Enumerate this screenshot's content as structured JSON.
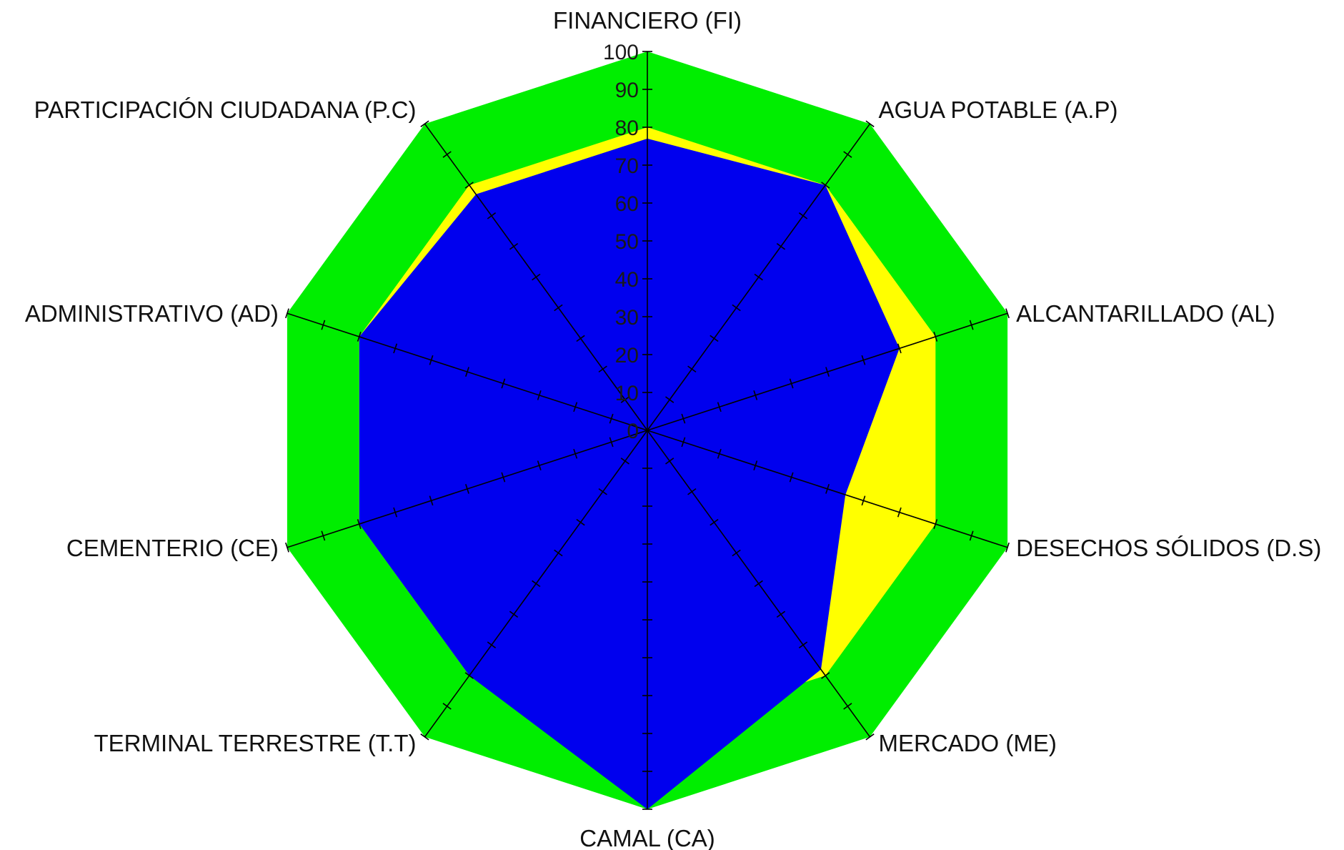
{
  "chart_data": {
    "type": "radar",
    "categories": [
      "FINANCIERO (FI)",
      "AGUA POTABLE (A.P)",
      "ALCANTARILLADO (AL)",
      "DESECHOS SÓLIDOS (D.S)",
      "MERCADO (ME)",
      "CAMAL (CA)",
      "TERMINAL TERRESTRE (T.T)",
      "CEMENTERIO (CE)",
      "ADMINISTRATIVO (AD)",
      "PARTICIPACIÓN CIUDADANA (P.C)"
    ],
    "axis_ticks": [
      "0",
      "10",
      "20",
      "30",
      "40",
      "50",
      "60",
      "70",
      "80",
      "90",
      "100"
    ],
    "rlim": [
      0,
      100
    ],
    "series": [
      {
        "values": [
          100,
          100,
          100,
          100,
          100,
          100,
          100,
          100,
          100,
          100
        ],
        "color": "#00ee00"
      },
      {
        "values": [
          80,
          80,
          80,
          80,
          80,
          80,
          80,
          80,
          80,
          80
        ],
        "color": "#ffff00"
      },
      {
        "values": [
          78,
          80,
          80,
          80,
          80,
          75,
          75,
          80,
          80,
          80
        ],
        "color": "#ffff00"
      },
      {
        "values": [
          77,
          80,
          70,
          55,
          78,
          100,
          80,
          80,
          80,
          77
        ],
        "color": "#0000ee"
      }
    ],
    "legend": "none",
    "grid": false
  }
}
